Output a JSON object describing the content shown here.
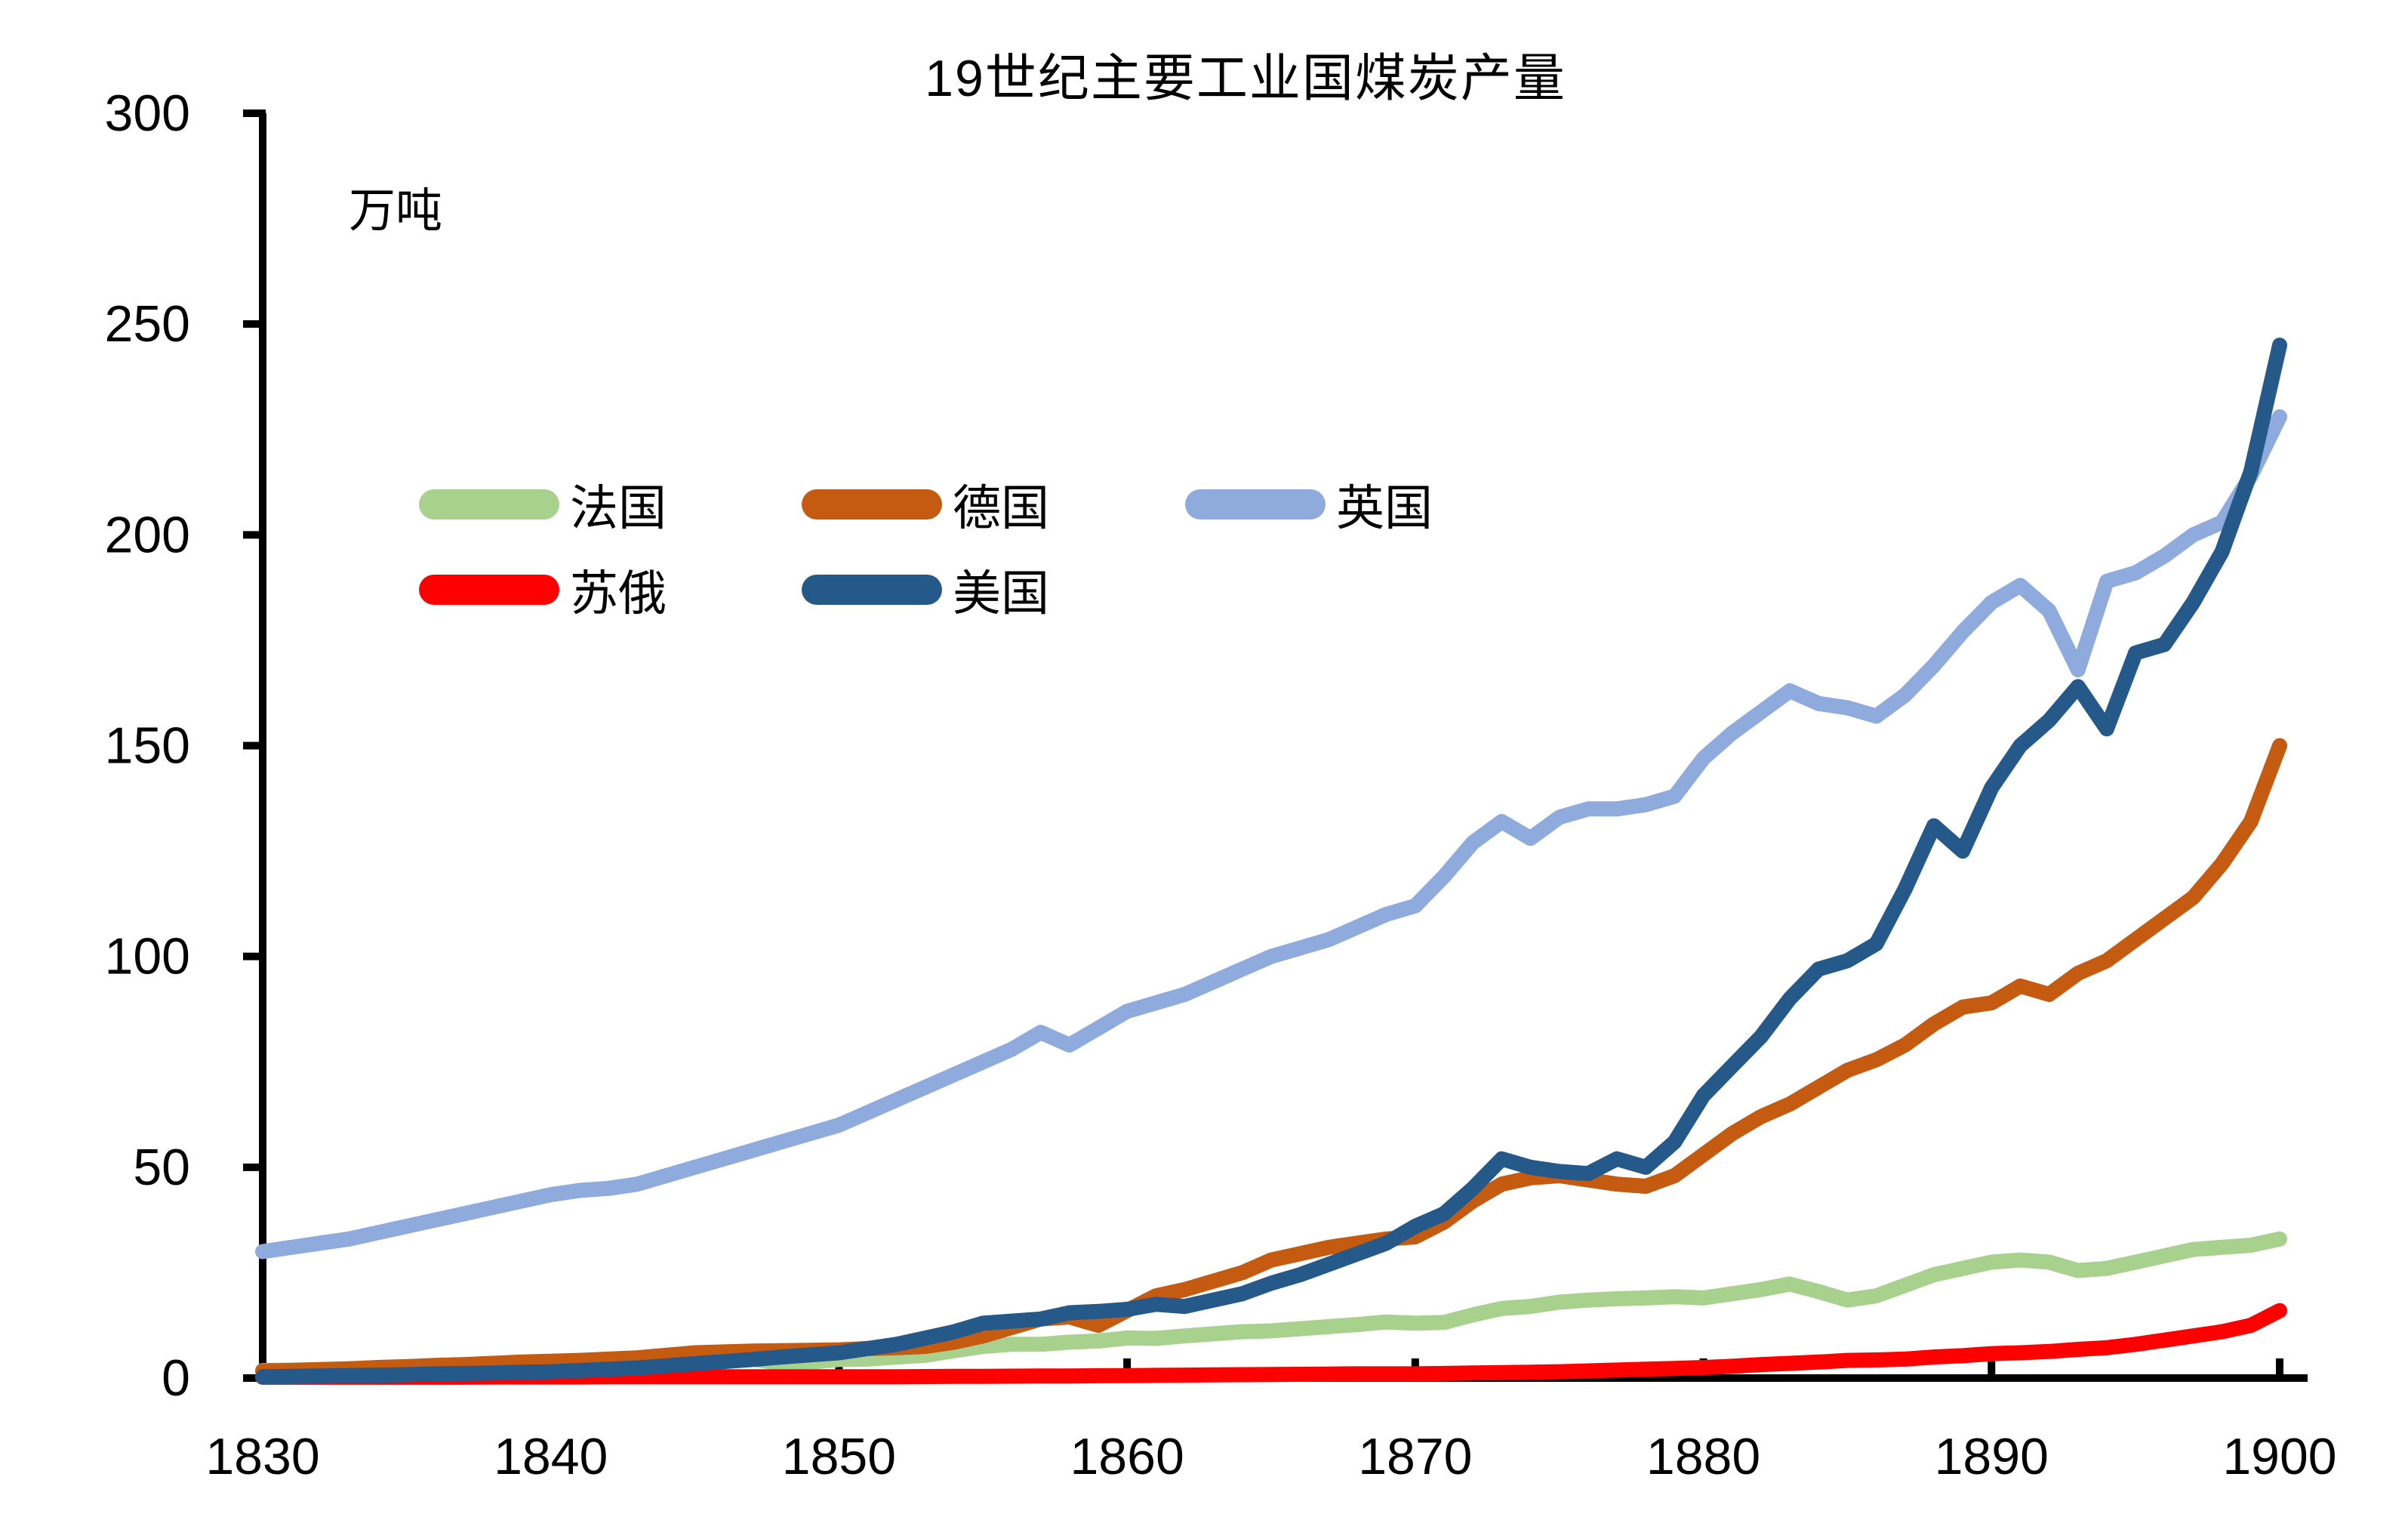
{
  "title": "19世纪主要工业国煤炭产量",
  "unit_label": "万吨",
  "legend": [
    {
      "label": "法国",
      "color": "#a9d18e"
    },
    {
      "label": "德国",
      "color": "#c55a11"
    },
    {
      "label": "英国",
      "color": "#8faadc"
    },
    {
      "label": "苏俄",
      "color": "#ff0000"
    },
    {
      "label": "美国",
      "color": "#25598a"
    }
  ],
  "chart_data": {
    "type": "line",
    "title": "19世纪主要工业国煤炭产量",
    "xlabel": "",
    "ylabel": "万吨",
    "xlim": [
      1830,
      1900
    ],
    "ylim": [
      0,
      300
    ],
    "x_ticks": [
      1830,
      1840,
      1850,
      1860,
      1870,
      1880,
      1890,
      1900
    ],
    "y_ticks": [
      0,
      50,
      100,
      150,
      200,
      250,
      300
    ],
    "grid": false,
    "legend_position": "inside upper-left, two rows",
    "years": [
      1830,
      1831,
      1832,
      1833,
      1834,
      1835,
      1836,
      1837,
      1838,
      1839,
      1840,
      1841,
      1842,
      1843,
      1844,
      1845,
      1846,
      1847,
      1848,
      1849,
      1850,
      1851,
      1852,
      1853,
      1854,
      1855,
      1856,
      1857,
      1858,
      1859,
      1860,
      1861,
      1862,
      1863,
      1864,
      1865,
      1866,
      1867,
      1868,
      1869,
      1870,
      1871,
      1872,
      1873,
      1874,
      1875,
      1876,
      1877,
      1878,
      1879,
      1880,
      1881,
      1882,
      1883,
      1884,
      1885,
      1886,
      1887,
      1888,
      1889,
      1890,
      1891,
      1892,
      1893,
      1894,
      1895,
      1896,
      1897,
      1898,
      1899,
      1900
    ],
    "series": [
      {
        "name": "法国",
        "key": "france",
        "color": "#a9d18e",
        "values": [
          1.8,
          1.9,
          2,
          2.2,
          2.4,
          2.5,
          2.7,
          2.9,
          3,
          3,
          3,
          3.2,
          3.3,
          3.5,
          3.8,
          4.2,
          4.4,
          4.5,
          3.5,
          3.8,
          4.4,
          4.5,
          5,
          5.4,
          6.5,
          7.5,
          8,
          8,
          8.5,
          8.8,
          9.5,
          9.4,
          10,
          10.5,
          11,
          11.2,
          11.7,
          12.2,
          12.7,
          13.3,
          13,
          13.2,
          15,
          16.5,
          17,
          18,
          18.5,
          18.8,
          19,
          19.3,
          19,
          20,
          21,
          22.3,
          20.5,
          18.5,
          19.5,
          22,
          24.5,
          26,
          27.5,
          28,
          27.5,
          25.5,
          26,
          27.5,
          29,
          30.5,
          31,
          31.5,
          33
        ]
      },
      {
        "name": "德国",
        "key": "germany",
        "color": "#c55a11",
        "values": [
          1.7,
          1.8,
          2,
          2.2,
          2.5,
          2.7,
          3,
          3.2,
          3.5,
          3.8,
          4,
          4.2,
          4.5,
          4.8,
          5.4,
          6,
          6.2,
          6.4,
          6.5,
          6.6,
          6.7,
          7,
          7.2,
          7.5,
          8.5,
          10,
          12,
          14,
          14.5,
          12.5,
          16,
          19.5,
          21,
          23,
          25,
          28,
          29.5,
          31,
          32,
          33,
          33.5,
          37,
          42,
          46,
          47.5,
          48,
          47,
          46,
          45.5,
          48,
          53,
          58,
          62,
          65,
          69,
          73,
          75.5,
          79,
          84,
          88,
          89,
          93,
          91,
          96,
          99,
          104,
          109,
          114,
          122,
          132,
          150
        ]
      },
      {
        "name": "英国",
        "key": "uk",
        "color": "#8faadc",
        "values": [
          30,
          31,
          32,
          33,
          34.5,
          36,
          37.5,
          39,
          40.5,
          42,
          43.5,
          44.5,
          45,
          46,
          48,
          50,
          52,
          54,
          56,
          58,
          60,
          63,
          66,
          69,
          72,
          75,
          78,
          82,
          79,
          83,
          87,
          89,
          91,
          94,
          97,
          100,
          102,
          104,
          107,
          110,
          112,
          119,
          127,
          132,
          128,
          133,
          135,
          135,
          136,
          138,
          147,
          153,
          158,
          163,
          160,
          159,
          157,
          162,
          169,
          177,
          184,
          188,
          182,
          168,
          189,
          191,
          195,
          200,
          203,
          214,
          228
        ]
      },
      {
        "name": "苏俄",
        "key": "soviet-russia",
        "color": "#ff0000",
        "values": [
          0.2,
          0.2,
          0.2,
          0.2,
          0.2,
          0.2,
          0.2,
          0.2,
          0.25,
          0.25,
          0.25,
          0.25,
          0.3,
          0.3,
          0.3,
          0.3,
          0.3,
          0.3,
          0.3,
          0.3,
          0.3,
          0.3,
          0.3,
          0.35,
          0.4,
          0.4,
          0.45,
          0.5,
          0.5,
          0.55,
          0.6,
          0.65,
          0.7,
          0.75,
          0.8,
          0.85,
          0.9,
          0.95,
          1,
          1,
          1,
          1.1,
          1.2,
          1.3,
          1.4,
          1.5,
          1.7,
          1.9,
          2.1,
          2.3,
          2.5,
          2.8,
          3.2,
          3.5,
          3.8,
          4.2,
          4.3,
          4.5,
          5,
          5.3,
          5.8,
          6,
          6.3,
          6.8,
          7.2,
          8,
          9,
          10,
          11,
          12.5,
          16
        ]
      },
      {
        "name": "美国",
        "key": "usa",
        "color": "#25598a",
        "values": [
          0.3,
          0.4,
          0.5,
          0.6,
          0.7,
          0.8,
          1,
          1.1,
          1.2,
          1.4,
          1.5,
          1.8,
          2.1,
          2.4,
          2.9,
          3.4,
          3.9,
          4.4,
          5,
          5.5,
          6,
          7,
          8,
          9.5,
          11,
          13,
          13.5,
          14,
          15.5,
          15.8,
          16.3,
          17.5,
          17,
          18.5,
          20,
          22.5,
          24.5,
          27,
          29.5,
          32,
          36,
          39,
          45,
          52,
          50,
          49,
          48.5,
          52,
          50,
          56,
          67,
          74,
          81,
          90,
          97,
          99,
          103,
          116,
          131,
          125,
          140,
          150,
          156,
          164,
          154,
          172,
          174,
          184,
          196,
          215,
          245
        ]
      }
    ]
  }
}
